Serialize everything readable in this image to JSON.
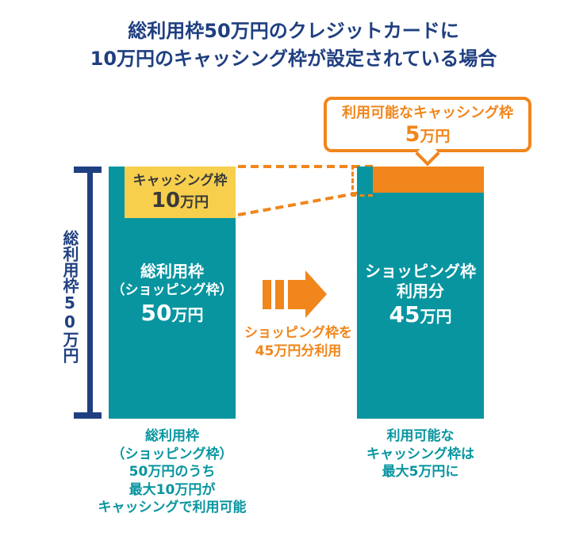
{
  "title": {
    "line1": "総利用枠50万円のクレジットカードに",
    "line2": "10万円のキャッシング枠が設定されている場合"
  },
  "colors": {
    "navy": "#1F3F80",
    "teal": "#0895A0",
    "yellow": "#F7CF4D",
    "orange": "#F0861C",
    "dark": "#3A3A3A"
  },
  "callout": {
    "line1": "利用可能なキャッシング枠",
    "amount_number": "5",
    "amount_unit": "万円"
  },
  "bracket": {
    "label": "総利用枠50万円"
  },
  "left_bar": {
    "cashing_label": "キャッシング枠",
    "cashing_number": "10",
    "cashing_unit": "万円",
    "label_line1": "総利用枠",
    "label_line2": "（ショッピング枠）",
    "amount_number": "50",
    "amount_unit": "万円"
  },
  "right_bar": {
    "label_line1": "ショッピング枠",
    "label_line2": "利用分",
    "amount_number": "45",
    "amount_unit": "万円"
  },
  "arrow_caption": {
    "line1": "ショッピング枠を",
    "line2": "45万円分利用"
  },
  "left_caption": {
    "lines": [
      "総利用枠",
      "（ショッピング枠）",
      "50万円のうち",
      "最大10万円が",
      "キャッシングで利用可能"
    ]
  },
  "right_caption": {
    "lines": [
      "利用可能な",
      "キャッシング枠は",
      "最大5万円に"
    ]
  },
  "chart_data": {
    "type": "bar",
    "unit": "万円",
    "title": "総利用枠50万円のクレジットカードに10万円のキャッシング枠が設定されている場合",
    "bars": [
      {
        "label": "総利用枠（ショッピング枠）",
        "total": 50,
        "segments": [
          {
            "label": "キャッシング枠",
            "value": 10
          },
          {
            "label": "総利用枠（ショッピング枠）",
            "value": 50
          }
        ],
        "note": "総利用枠（ショッピング枠）50万円のうち最大10万円がキャッシングで利用可能"
      },
      {
        "label": "ショッピング枠利用分",
        "total": 50,
        "segments": [
          {
            "label": "利用可能なキャッシング枠",
            "value": 5
          },
          {
            "label": "ショッピング枠利用分",
            "value": 45
          }
        ],
        "note": "利用可能なキャッシング枠は最大5万円に"
      }
    ]
  }
}
